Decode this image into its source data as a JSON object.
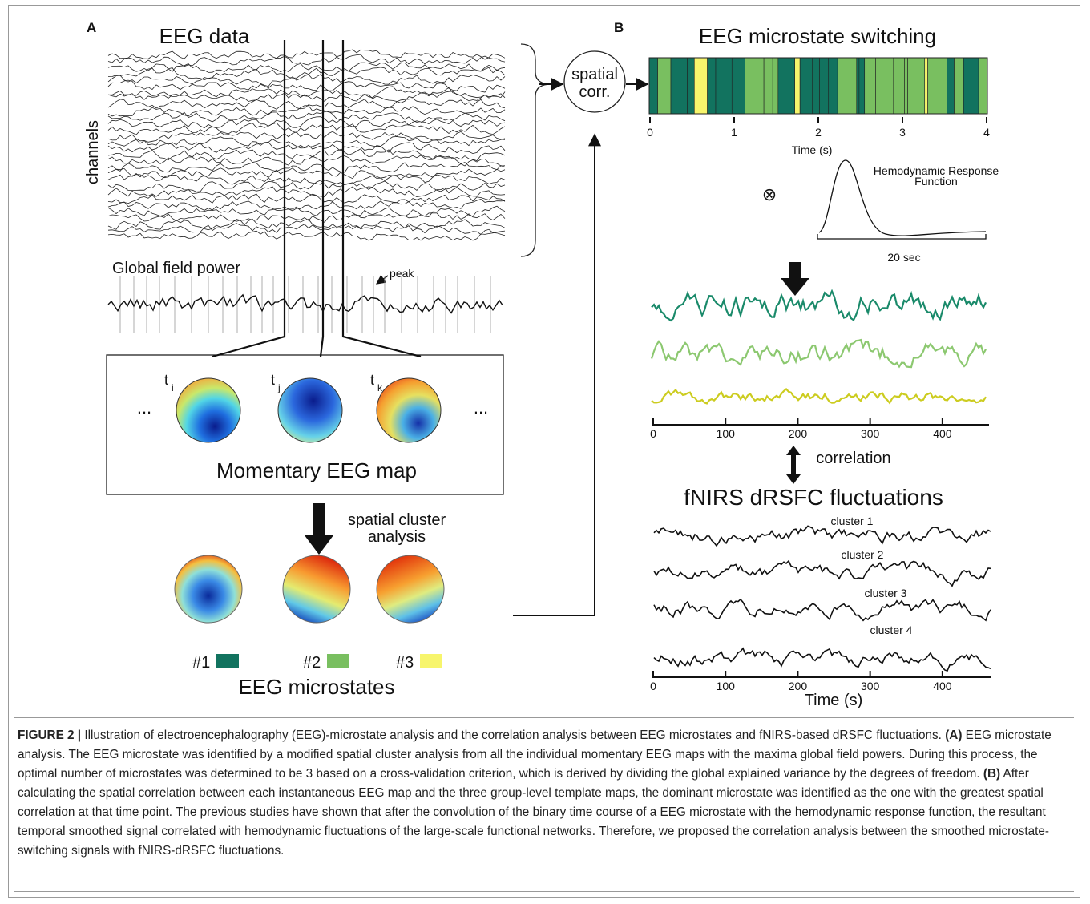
{
  "panel_a": {
    "label": "A",
    "title": "EEG data",
    "y_label": "channels",
    "gfp_label": "Global field power",
    "peak_label": "peak",
    "time_points": [
      {
        "base": "t",
        "sub": "i"
      },
      {
        "base": "t",
        "sub": "j"
      },
      {
        "base": "t",
        "sub": "k"
      }
    ],
    "ellipsis": "...",
    "map_title": "Momentary EEG map",
    "arrow_label": [
      "spatial cluster",
      "analysis"
    ],
    "microstates": [
      {
        "name": "#1",
        "color": "#12735f"
      },
      {
        "name": "#2",
        "color": "#79bf60"
      },
      {
        "name": "#3",
        "color": "#f7f56c"
      }
    ],
    "microstates_title": "EEG microstates"
  },
  "panel_b": {
    "label": "B",
    "title": "EEG microstate switching",
    "spatial_corr": [
      "spatial",
      "corr."
    ],
    "switching_xlim": [
      0,
      4
    ],
    "switching_xticks": [
      0,
      1,
      2,
      3,
      4
    ],
    "switching_x_label": "Time (s)",
    "convolution": "⊗",
    "hrf_label": [
      "Hemodynamic Response",
      "Function"
    ],
    "hrf_scale": "20 sec",
    "smoothed_xlim": [
      0,
      460
    ],
    "smoothed_xticks": [
      0,
      100,
      200,
      300,
      400
    ],
    "correlation": "correlation",
    "fnirs_title": "fNIRS dRSFC fluctuations",
    "clusters": [
      "cluster 1",
      "cluster 2",
      "cluster 3",
      "cluster 4"
    ],
    "fnirs_xlim": [
      0,
      460
    ],
    "fnirs_xticks": [
      0,
      100,
      200,
      300,
      400
    ],
    "fnirs_x_label": "Time (s)"
  },
  "caption": [
    {
      "text": "FIGURE 2 | ",
      "bold": true
    },
    {
      "text": "Illustration of electroencephalography (EEG)-microstate analysis and the correlation analysis between EEG microstates and fNIRS-based dRSFC fluctuations. ",
      "bold": false
    },
    {
      "text": "(A)",
      "bold": true
    },
    {
      "text": " EEG microstate analysis. The EEG microstate was identified by a modified spatial cluster analysis from all the individual momentary EEG maps with the maxima global field powers. During this process, the optimal number of microstates was determined to be 3 based on a cross-validation criterion, which is derived by dividing the global explained variance by the degrees of freedom. ",
      "bold": false
    },
    {
      "text": "(B)",
      "bold": true
    },
    {
      "text": " After calculating the spatial correlation between each instantaneous EEG map and the three group-level template maps, the dominant microstate was identified as the one with the greatest spatial correlation at that time point. The previous studies have shown that after the convolution of the binary time course of a EEG microstate with the hemodynamic response function, the resultant temporal smoothed signal correlated with hemodynamic fluctuations of the large-scale functional networks. Therefore, we proposed the correlation analysis between the smoothed microstate-switching signals with fNIRS-dRSFC fluctuations.",
      "bold": false
    }
  ]
}
